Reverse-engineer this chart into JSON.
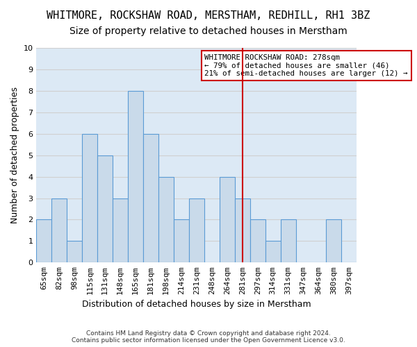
{
  "title": "WHITMORE, ROCKSHAW ROAD, MERSTHAM, REDHILL, RH1 3BZ",
  "subtitle": "Size of property relative to detached houses in Merstham",
  "xlabel": "Distribution of detached houses by size in Merstham",
  "ylabel": "Number of detached properties",
  "footer_line1": "Contains HM Land Registry data © Crown copyright and database right 2024.",
  "footer_line2": "Contains public sector information licensed under the Open Government Licence v3.0.",
  "bin_labels": [
    "65sqm",
    "82sqm",
    "98sqm",
    "115sqm",
    "131sqm",
    "148sqm",
    "165sqm",
    "181sqm",
    "198sqm",
    "214sqm",
    "231sqm",
    "248sqm",
    "264sqm",
    "281sqm",
    "297sqm",
    "314sqm",
    "331sqm",
    "347sqm",
    "364sqm",
    "380sqm",
    "397sqm"
  ],
  "bar_values": [
    2,
    3,
    1,
    6,
    5,
    3,
    8,
    6,
    4,
    2,
    3,
    0,
    4,
    3,
    2,
    1,
    2,
    0,
    0,
    2,
    0
  ],
  "bar_color": "#c9daea",
  "bar_edge_color": "#5b9bd5",
  "grid_color": "#d0d0d0",
  "vline_x": 13,
  "vline_color": "#cc0000",
  "annotation_title": "WHITMORE ROCKSHAW ROAD: 278sqm",
  "annotation_line1": "← 79% of detached houses are smaller (46)",
  "annotation_line2": "21% of semi-detached houses are larger (12) →",
  "annotation_box_color": "#ffffff",
  "annotation_box_edge": "#cc0000",
  "ylim": [
    0,
    10
  ],
  "yticks": [
    0,
    1,
    2,
    3,
    4,
    5,
    6,
    7,
    8,
    9,
    10
  ],
  "background_color": "#dce9f5",
  "title_fontsize": 11,
  "subtitle_fontsize": 10,
  "axis_label_fontsize": 9,
  "tick_fontsize": 8
}
